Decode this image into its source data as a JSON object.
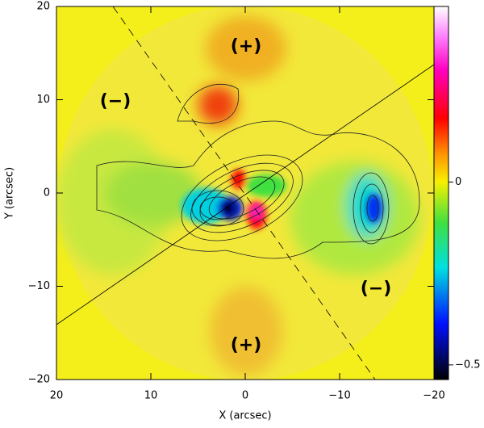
{
  "chart_data": {
    "type": "heatmap",
    "x_label": "X (arcsec)",
    "y_label": "Y (arcsec)",
    "xlim": [
      20,
      -20
    ],
    "ylim": [
      -20,
      20
    ],
    "xticks": [
      20,
      10,
      0,
      {
        "value": -10,
        "label": "−10"
      },
      {
        "value": -20,
        "label": "−20"
      }
    ],
    "yticks": [
      {
        "value": -20,
        "label": "−20"
      },
      {
        "value": -10,
        "label": "−10"
      },
      0,
      10,
      20
    ],
    "colorbar_lim": [
      -0.54,
      0.48
    ],
    "colorbar_ticks": [
      0,
      {
        "value": -0.5,
        "label": "−0.5"
      }
    ],
    "annotations": [
      "(+)",
      "(−)",
      "(+)",
      "(−)"
    ]
  }
}
